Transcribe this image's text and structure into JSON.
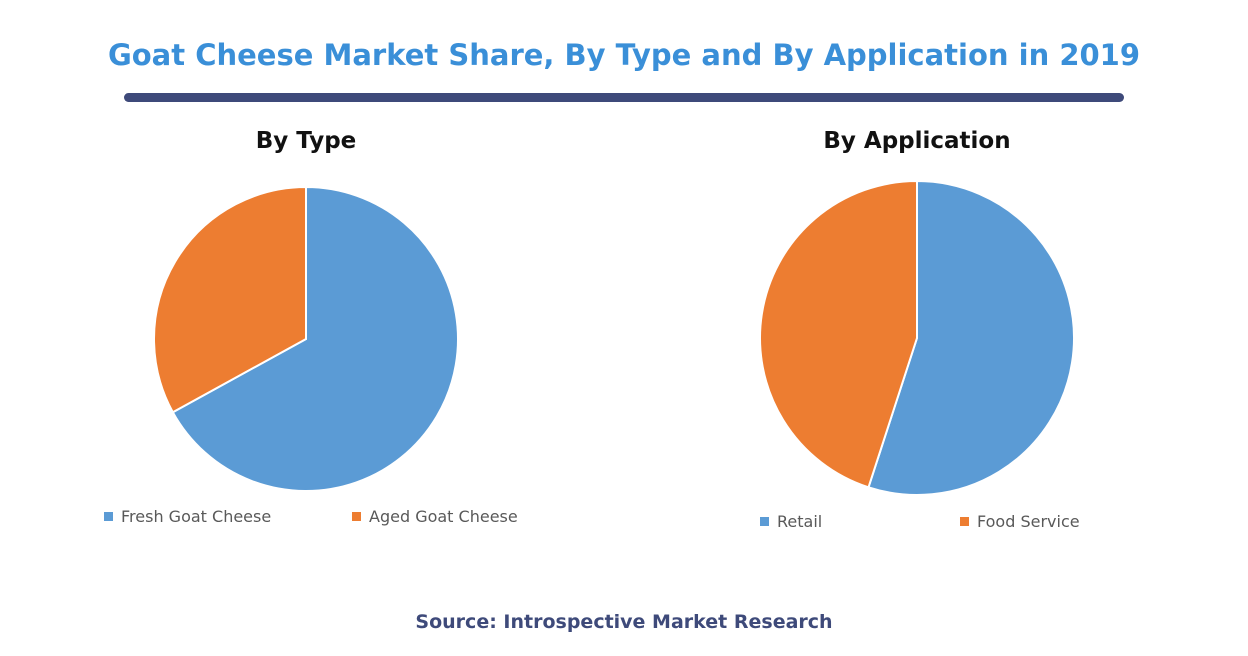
{
  "title": "Goat Cheese Market Share, By Type and By Application in 2019",
  "source": "Source: Introspective Market Research",
  "colors": {
    "title": "#3a8fd8",
    "rule": "#3e4a7a",
    "blue": "#5b9bd5",
    "orange": "#ed7d31"
  },
  "chart_data": [
    {
      "type": "pie",
      "title": "By Type",
      "series": [
        {
          "name": "Fresh Goat Cheese",
          "value": 67,
          "color": "#5b9bd5"
        },
        {
          "name": "Aged Goat Cheese",
          "value": 33,
          "color": "#ed7d31"
        }
      ],
      "legend_position": "bottom"
    },
    {
      "type": "pie",
      "title": "By Application",
      "series": [
        {
          "name": "Retail",
          "value": 55,
          "color": "#5b9bd5"
        },
        {
          "name": "Food Service",
          "value": 45,
          "color": "#ed7d31"
        }
      ],
      "legend_position": "bottom"
    }
  ]
}
